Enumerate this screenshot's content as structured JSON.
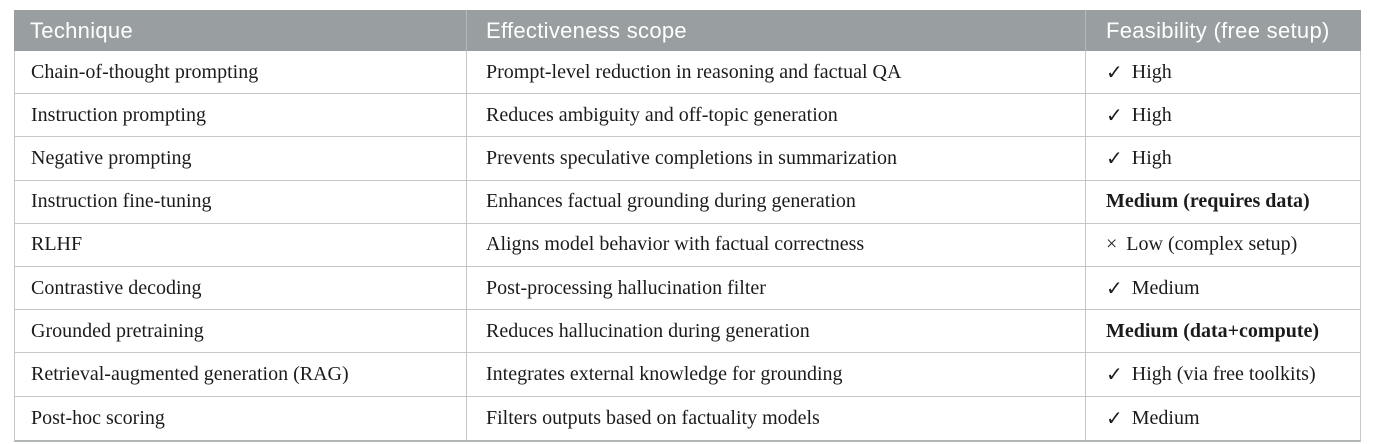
{
  "table": {
    "columns": [
      {
        "label": "Technique"
      },
      {
        "label": "Effectiveness scope"
      },
      {
        "label": "Feasibility (free setup)"
      }
    ],
    "rows": [
      {
        "technique": "Chain-of-thought prompting",
        "scope": "Prompt-level reduction in reasoning and factual QA",
        "feasibility_icon": "✓",
        "feasibility_label": "High",
        "emphasis": false
      },
      {
        "technique": "Instruction prompting",
        "scope": "Reduces ambiguity and off-topic generation",
        "feasibility_icon": "✓",
        "feasibility_label": "High",
        "emphasis": false
      },
      {
        "technique": "Negative prompting",
        "scope": "Prevents speculative completions in summarization",
        "feasibility_icon": "✓",
        "feasibility_label": "High",
        "emphasis": false
      },
      {
        "technique": "Instruction fine-tuning",
        "scope": "Enhances factual grounding during generation",
        "feasibility_icon": "",
        "feasibility_label": "Medium (requires data)",
        "emphasis": true
      },
      {
        "technique": "RLHF",
        "scope": "Aligns model behavior with factual correctness",
        "feasibility_icon": "×",
        "feasibility_label": "Low (complex setup)",
        "emphasis": false
      },
      {
        "technique": "Contrastive decoding",
        "scope": "Post-processing hallucination filter",
        "feasibility_icon": "✓",
        "feasibility_label": "Medium",
        "emphasis": false
      },
      {
        "technique": "Grounded pretraining",
        "scope": "Reduces hallucination during generation",
        "feasibility_icon": "",
        "feasibility_label": "Medium (data+compute)",
        "emphasis": true
      },
      {
        "technique": "Retrieval-augmented generation (RAG)",
        "scope": "Integrates external knowledge for grounding",
        "feasibility_icon": "✓",
        "feasibility_label": "High (via free toolkits)",
        "emphasis": false
      },
      {
        "technique": "Post-hoc scoring",
        "scope": "Filters outputs based on factuality models",
        "feasibility_icon": "✓",
        "feasibility_label": "Medium",
        "emphasis": false
      }
    ]
  },
  "colors": {
    "header_bg": "#999ea1",
    "header_text": "#ffffff",
    "header_divider": "#b3b8ba",
    "row_border": "#c6c6c6",
    "outer_bottom_border": "#b2b7b4",
    "body_text": "#1b1b1b"
  }
}
